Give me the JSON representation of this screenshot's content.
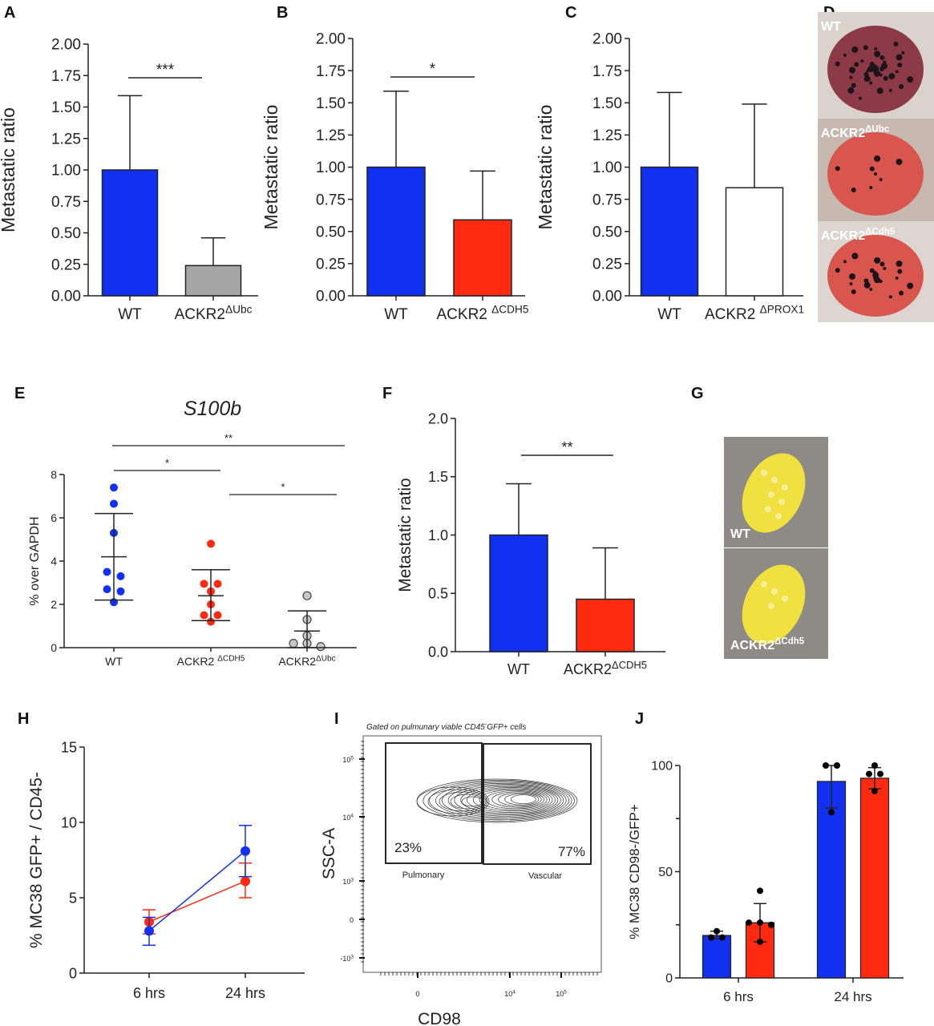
{
  "panel_letters": [
    "A",
    "B",
    "C",
    "D",
    "E",
    "F",
    "G",
    "H",
    "I",
    "J"
  ],
  "colors": {
    "blue": "#1230f0",
    "red": "#ff2a10",
    "gray": "#a6a6a6",
    "white": "#ffffff",
    "gray_dot": "#c8c8c8",
    "black": "#000000"
  },
  "chart_data": [
    {
      "panel": "A",
      "type": "bar",
      "ylabel": "Metastatic ratio",
      "ylim": [
        0,
        2
      ],
      "yticks": [
        "0.00",
        "0.25",
        "0.50",
        "0.75",
        "1.00",
        "1.25",
        "1.50",
        "1.75",
        "2.00"
      ],
      "categories": [
        {
          "base": "WT",
          "sup": ""
        },
        {
          "base": "ACKR2",
          "sup": "ΔUbc"
        }
      ],
      "values": [
        1.0,
        0.24
      ],
      "error_upper": [
        1.59,
        0.46
      ],
      "bar_colors": [
        "blue",
        "gray"
      ],
      "significance": [
        {
          "between": [
            0,
            1
          ],
          "label": "***"
        }
      ]
    },
    {
      "panel": "B",
      "type": "bar",
      "ylabel": "Metastatic ratio",
      "ylim": [
        0,
        2
      ],
      "yticks": [
        "0.00",
        "0.25",
        "0.50",
        "0.75",
        "1.00",
        "1.25",
        "1.50",
        "1.75",
        "2.00"
      ],
      "categories": [
        {
          "base": "WT",
          "sup": ""
        },
        {
          "base": "ACKR2 ",
          "sup": "ΔCDH5"
        }
      ],
      "values": [
        1.0,
        0.59
      ],
      "error_upper": [
        1.59,
        0.97
      ],
      "bar_colors": [
        "blue",
        "red"
      ],
      "significance": [
        {
          "between": [
            0,
            1
          ],
          "label": "*"
        }
      ]
    },
    {
      "panel": "C",
      "type": "bar",
      "ylabel": "Metastatic ratio",
      "ylim": [
        0,
        2
      ],
      "yticks": [
        "0.00",
        "0.25",
        "0.50",
        "0.75",
        "1.00",
        "1.25",
        "1.50",
        "1.75",
        "2.00"
      ],
      "categories": [
        {
          "base": "WT",
          "sup": ""
        },
        {
          "base": "ACKR2 ",
          "sup": "ΔPROX1"
        }
      ],
      "values": [
        1.0,
        0.84
      ],
      "error_upper": [
        1.58,
        1.49
      ],
      "bar_colors": [
        "blue",
        "white"
      ],
      "significance": []
    },
    {
      "panel": "E",
      "type": "scatter",
      "title": "S100b",
      "ylabel": "% over GAPDH",
      "ylim": [
        0,
        8
      ],
      "yticks": [
        "0",
        "2",
        "4",
        "6",
        "8"
      ],
      "categories": [
        {
          "base": "WT",
          "sup": ""
        },
        {
          "base": "ACKR2 ",
          "sup": "ΔCDH5"
        },
        {
          "base": "ACKR2",
          "sup": "ΔUbc"
        }
      ],
      "points": [
        [
          7.4,
          6.65,
          5.3,
          3.5,
          3.3,
          2.7,
          2.6,
          2.1
        ],
        [
          4.8,
          2.95,
          2.95,
          2.6,
          2.0,
          1.5,
          1.5,
          1.2
        ],
        [
          2.4,
          1.3,
          0.55,
          0.2,
          0.2,
          0.05
        ]
      ],
      "mean": [
        4.2,
        2.4,
        0.77
      ],
      "sd_low": [
        2.2,
        1.25,
        0.0
      ],
      "sd_high": [
        6.2,
        3.6,
        1.7
      ],
      "point_colors": [
        "blue",
        "red",
        "gray_dot"
      ],
      "significance": [
        {
          "between": [
            0,
            2
          ],
          "label": "**"
        },
        {
          "between": [
            0,
            1
          ],
          "label": "*"
        },
        {
          "between": [
            1,
            2
          ],
          "label": "*"
        }
      ]
    },
    {
      "panel": "F",
      "type": "bar",
      "ylabel": "Metastatic ratio",
      "ylim": [
        0,
        2
      ],
      "yticks": [
        "0.0",
        "0.5",
        "1.0",
        "1.5",
        "2.0"
      ],
      "categories": [
        {
          "base": "WT",
          "sup": ""
        },
        {
          "base": "ACKR2",
          "sup": "ΔCDH5"
        }
      ],
      "values": [
        1.0,
        0.45
      ],
      "error_upper": [
        1.44,
        0.89
      ],
      "bar_colors": [
        "blue",
        "red"
      ],
      "significance": [
        {
          "between": [
            0,
            1
          ],
          "label": "**"
        }
      ]
    },
    {
      "panel": "H",
      "type": "line",
      "ylabel": "% MC38 GFP+ / CD45-",
      "ylim": [
        0,
        15
      ],
      "yticks": [
        "0",
        "5",
        "10",
        "15"
      ],
      "categories": [
        {
          "base": "6 hrs",
          "sup": ""
        },
        {
          "base": "24 hrs",
          "sup": ""
        }
      ],
      "series": [
        {
          "color": "blue",
          "values": [
            2.8,
            8.1
          ],
          "err_low": [
            1.85,
            6.4
          ],
          "err_high": [
            3.7,
            9.8
          ]
        },
        {
          "color": "red",
          "values": [
            3.4,
            6.1
          ],
          "err_low": [
            2.6,
            5.0
          ],
          "err_high": [
            4.2,
            7.3
          ]
        }
      ]
    },
    {
      "panel": "I",
      "type": "scatter",
      "subtype": "flow-contour",
      "title": "Gated on pulmunary viable CD45-GFP+ cells",
      "title_main": "Gated on pulmunary viable CD45",
      "title_sup": "-",
      "title_end": "GFP+ cells",
      "xlabel": "CD98",
      "ylabel": "SSC-A",
      "xticks": [
        {
          "base": "0",
          "sup": ""
        },
        {
          "base": "10",
          "sup": "4"
        },
        {
          "base": "10",
          "sup": "5"
        }
      ],
      "yticks": [
        {
          "base": "10",
          "sup": "5"
        },
        {
          "base": "10",
          "sup": "4"
        },
        {
          "base": "10",
          "sup": "3"
        },
        {
          "base": "0",
          "sup": ""
        },
        {
          "base": "-10",
          "sup": "3"
        }
      ],
      "gates": [
        {
          "name": "Pulmonary",
          "percent": "23%"
        },
        {
          "name": "Vascular",
          "percent": "77%"
        }
      ]
    },
    {
      "panel": "J",
      "type": "bar",
      "ylabel": "% MC38 CD98-/GFP+",
      "ylim": [
        0,
        100
      ],
      "yticks": [
        "0",
        "50",
        "100"
      ],
      "categories": [
        {
          "base": "6 hrs",
          "sup": ""
        },
        {
          "base": "24 hrs",
          "sup": ""
        }
      ],
      "series": [
        {
          "color": "blue",
          "values": [
            20,
            92.5
          ],
          "err_low": [
            18.5,
            80
          ],
          "err_high": [
            22,
            100
          ],
          "points": [
            [
              19,
              19,
              22
            ],
            [
              100,
              100,
              78
            ]
          ]
        },
        {
          "color": "red",
          "values": [
            26,
            94
          ],
          "err_low": [
            17,
            89
          ],
          "err_high": [
            35,
            99
          ],
          "points": [
            [
              41,
              26,
              26,
              25,
              17
            ],
            [
              100,
              96,
              96,
              88
            ]
          ]
        }
      ]
    }
  ],
  "photos": {
    "D": [
      {
        "base": "WT",
        "sup": ""
      },
      {
        "base": "ACKR2",
        "sup": "ΔUbc"
      },
      {
        "base": "ACKR2",
        "sup": "ΔCdh5"
      }
    ],
    "G": [
      {
        "base": "WT",
        "sup": ""
      },
      {
        "base": "ACKR2",
        "sup": "ΔCdh5"
      }
    ]
  }
}
